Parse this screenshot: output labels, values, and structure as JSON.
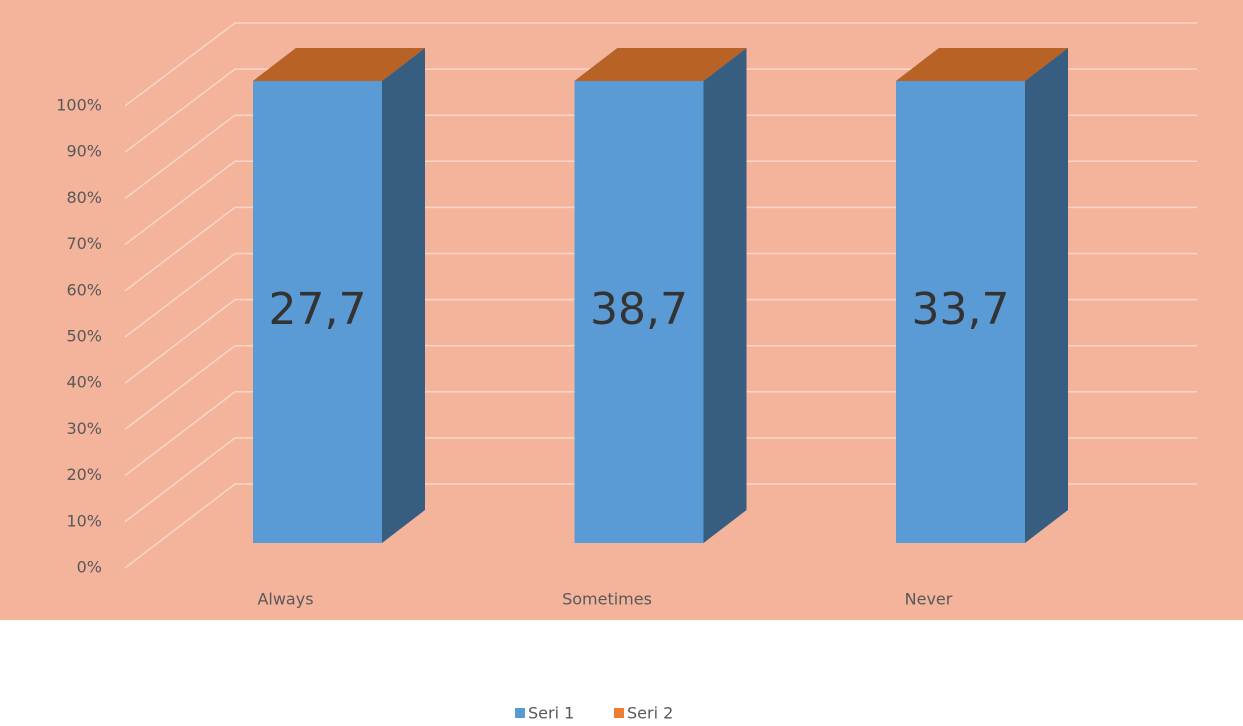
{
  "chart_data": {
    "type": "bar",
    "stacked": "percent",
    "categories": [
      "Always",
      "Sometimes",
      "Never"
    ],
    "series": [
      {
        "name": "Seri 1",
        "color": "#5b9bd5",
        "values": [
          27.7,
          38.7,
          33.7
        ],
        "value_labels": [
          "27,7",
          "38,7",
          "33,7"
        ]
      },
      {
        "name": "Seri 2",
        "color": "#ed7d31",
        "values": [
          0,
          0,
          0
        ]
      }
    ],
    "ylim": [
      0,
      100
    ],
    "yticks": [
      {
        "value": 0,
        "label": "0%"
      },
      {
        "value": 10,
        "label": "10%"
      },
      {
        "value": 20,
        "label": "20%"
      },
      {
        "value": 30,
        "label": "30%"
      },
      {
        "value": 40,
        "label": "40%"
      },
      {
        "value": 50,
        "label": "50%"
      },
      {
        "value": 60,
        "label": "60%"
      },
      {
        "value": 70,
        "label": "70%"
      },
      {
        "value": 80,
        "label": "80%"
      },
      {
        "value": 90,
        "label": "90%"
      },
      {
        "value": 100,
        "label": "100%"
      }
    ],
    "grid": true,
    "legend": "bottom",
    "background": "#f4b39b"
  }
}
